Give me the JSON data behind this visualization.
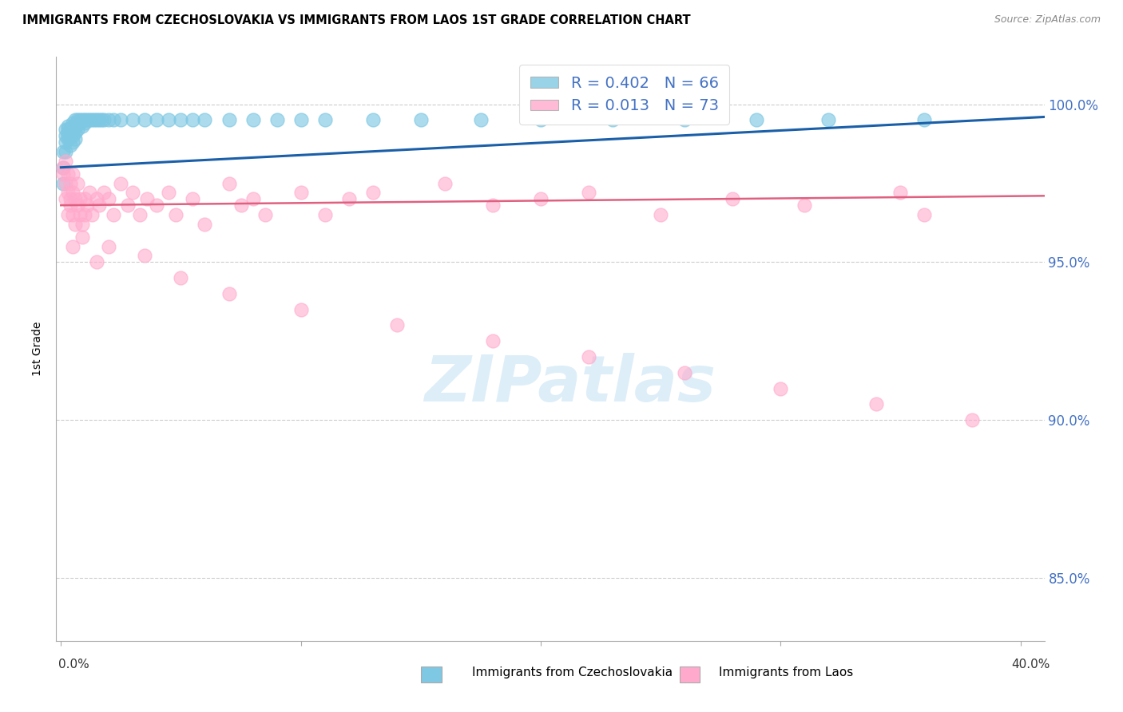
{
  "title": "IMMIGRANTS FROM CZECHOSLOVAKIA VS IMMIGRANTS FROM LAOS 1ST GRADE CORRELATION CHART",
  "source": "Source: ZipAtlas.com",
  "ylabel": "1st Grade",
  "yticks": [
    100.0,
    95.0,
    90.0,
    85.0
  ],
  "ytick_labels": [
    "100.0%",
    "95.0%",
    "90.0%",
    "85.0%"
  ],
  "ylim": [
    83.0,
    101.5
  ],
  "xlim": [
    -0.002,
    0.41
  ],
  "legend_r1": "R = 0.402",
  "legend_n1": "N = 66",
  "legend_r2": "R = 0.013",
  "legend_n2": "N = 73",
  "color_czech": "#7ec8e3",
  "color_laos": "#ffaacc",
  "trendline_czech": "#1a5fa8",
  "trendline_laos": "#e06080",
  "watermark_color": "#ddeef8",
  "background": "#ffffff",
  "czech_x": [
    0.001,
    0.001,
    0.001,
    0.002,
    0.002,
    0.002,
    0.002,
    0.003,
    0.003,
    0.003,
    0.003,
    0.003,
    0.004,
    0.004,
    0.004,
    0.004,
    0.005,
    0.005,
    0.005,
    0.005,
    0.005,
    0.006,
    0.006,
    0.006,
    0.006,
    0.007,
    0.007,
    0.007,
    0.008,
    0.008,
    0.009,
    0.009,
    0.01,
    0.01,
    0.011,
    0.012,
    0.013,
    0.014,
    0.015,
    0.016,
    0.017,
    0.018,
    0.02,
    0.022,
    0.025,
    0.03,
    0.035,
    0.04,
    0.045,
    0.05,
    0.055,
    0.06,
    0.07,
    0.08,
    0.09,
    0.1,
    0.11,
    0.13,
    0.15,
    0.175,
    0.2,
    0.23,
    0.26,
    0.29,
    0.32,
    0.36
  ],
  "czech_y": [
    97.5,
    98.0,
    98.5,
    98.5,
    99.0,
    99.2,
    98.8,
    99.0,
    99.1,
    99.2,
    98.9,
    99.3,
    99.1,
    99.0,
    98.7,
    99.2,
    99.4,
    99.2,
    99.0,
    98.8,
    99.3,
    99.5,
    99.3,
    99.1,
    98.9,
    99.5,
    99.4,
    99.2,
    99.5,
    99.4,
    99.5,
    99.3,
    99.5,
    99.4,
    99.5,
    99.5,
    99.5,
    99.5,
    99.5,
    99.5,
    99.5,
    99.5,
    99.5,
    99.5,
    99.5,
    99.5,
    99.5,
    99.5,
    99.5,
    99.5,
    99.5,
    99.5,
    99.5,
    99.5,
    99.5,
    99.5,
    99.5,
    99.5,
    99.5,
    99.5,
    99.5,
    99.5,
    99.5,
    99.5,
    99.5,
    99.5
  ],
  "laos_x": [
    0.001,
    0.001,
    0.002,
    0.002,
    0.002,
    0.003,
    0.003,
    0.003,
    0.004,
    0.004,
    0.004,
    0.005,
    0.005,
    0.005,
    0.006,
    0.006,
    0.007,
    0.007,
    0.008,
    0.008,
    0.009,
    0.01,
    0.01,
    0.011,
    0.012,
    0.013,
    0.015,
    0.016,
    0.018,
    0.02,
    0.022,
    0.025,
    0.028,
    0.03,
    0.033,
    0.036,
    0.04,
    0.045,
    0.048,
    0.055,
    0.06,
    0.07,
    0.075,
    0.08,
    0.085,
    0.1,
    0.11,
    0.12,
    0.13,
    0.16,
    0.18,
    0.2,
    0.22,
    0.25,
    0.28,
    0.31,
    0.35,
    0.009,
    0.02,
    0.035,
    0.05,
    0.07,
    0.1,
    0.14,
    0.18,
    0.22,
    0.26,
    0.3,
    0.34,
    0.38,
    0.36,
    0.005,
    0.015
  ],
  "laos_y": [
    97.8,
    98.0,
    97.5,
    98.2,
    97.0,
    97.8,
    96.5,
    97.2,
    97.5,
    96.8,
    97.0,
    97.2,
    96.5,
    97.8,
    97.0,
    96.2,
    96.8,
    97.5,
    96.5,
    97.0,
    96.2,
    97.0,
    96.5,
    96.8,
    97.2,
    96.5,
    97.0,
    96.8,
    97.2,
    97.0,
    96.5,
    97.5,
    96.8,
    97.2,
    96.5,
    97.0,
    96.8,
    97.2,
    96.5,
    97.0,
    96.2,
    97.5,
    96.8,
    97.0,
    96.5,
    97.2,
    96.5,
    97.0,
    97.2,
    97.5,
    96.8,
    97.0,
    97.2,
    96.5,
    97.0,
    96.8,
    97.2,
    95.8,
    95.5,
    95.2,
    94.5,
    94.0,
    93.5,
    93.0,
    92.5,
    92.0,
    91.5,
    91.0,
    90.5,
    90.0,
    96.5,
    95.5,
    95.0
  ],
  "xtick_positions": [
    0.0,
    0.1,
    0.2,
    0.3,
    0.4
  ],
  "trendline_czech_y0": 98.0,
  "trendline_czech_y1": 99.6,
  "trendline_laos_y0": 96.8,
  "trendline_laos_y1": 97.1
}
